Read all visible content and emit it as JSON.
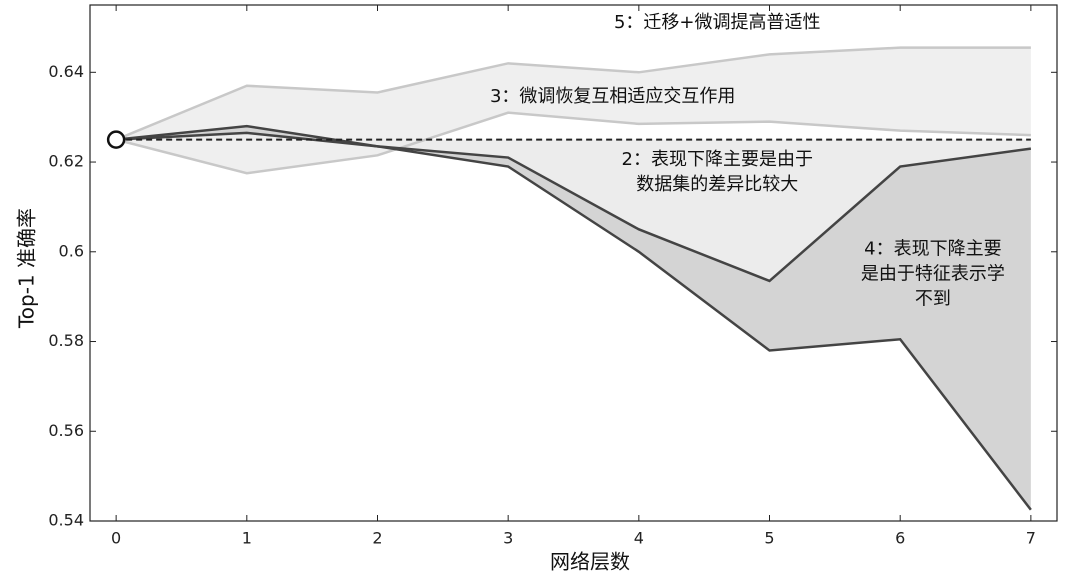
{
  "chart_data": {
    "type": "line",
    "x_label": "网络层数",
    "y_label": "Top-1  准确率",
    "x": [
      0,
      1,
      2,
      3,
      4,
      5,
      6,
      7
    ],
    "xlim": [
      -0.2,
      7.2
    ],
    "xticks": [
      0,
      1,
      2,
      3,
      4,
      5,
      6,
      7
    ],
    "ylim": [
      0.54,
      0.655
    ],
    "yticks": [
      0.54,
      0.56,
      0.58,
      0.6,
      0.62,
      0.64
    ],
    "series": [
      {
        "color": "#c8c8c8",
        "values": [
          0.625,
          0.637,
          0.6355,
          0.642,
          0.64,
          0.644,
          0.6455,
          0.6455
        ]
      },
      {
        "color": "#c8c8c8",
        "values": [
          0.625,
          0.6175,
          0.6215,
          0.631,
          0.6285,
          0.629,
          0.627,
          0.626
        ]
      },
      {
        "color": "#444444",
        "values": [
          0.625,
          0.628,
          0.6235,
          0.621,
          0.605,
          0.5935,
          0.619,
          0.623
        ]
      },
      {
        "color": "#444444",
        "values": [
          0.625,
          0.6265,
          0.6235,
          0.619,
          0.6,
          0.578,
          0.5805,
          0.5425
        ]
      },
      {
        "color": "#222222",
        "dashed": true,
        "values": [
          0.625,
          0.625,
          0.625,
          0.625,
          0.625,
          0.625,
          0.625,
          0.625
        ]
      }
    ],
    "fills": [
      {
        "between": [
          0,
          1
        ],
        "color": "#efefef"
      },
      {
        "between": [
          4,
          2
        ],
        "color": "#ececec"
      },
      {
        "between": [
          2,
          3
        ],
        "color": "#d4d4d4"
      }
    ],
    "annotations": [
      {
        "x": 4.6,
        "y": 0.651,
        "lines": [
          "5：迁移+微调提高普适性"
        ]
      },
      {
        "x": 3.8,
        "y": 0.6345,
        "lines": [
          "3：微调恢复互相适应交互作用"
        ]
      },
      {
        "x": 4.6,
        "y": 0.6205,
        "lines": [
          "2：表现下降主要是由于",
          "数据集的差异比较大"
        ]
      },
      {
        "x": 6.25,
        "y": 0.6005,
        "lines": [
          "4：表现下降主要",
          "是由于特征表示学",
          "不到"
        ]
      }
    ]
  }
}
